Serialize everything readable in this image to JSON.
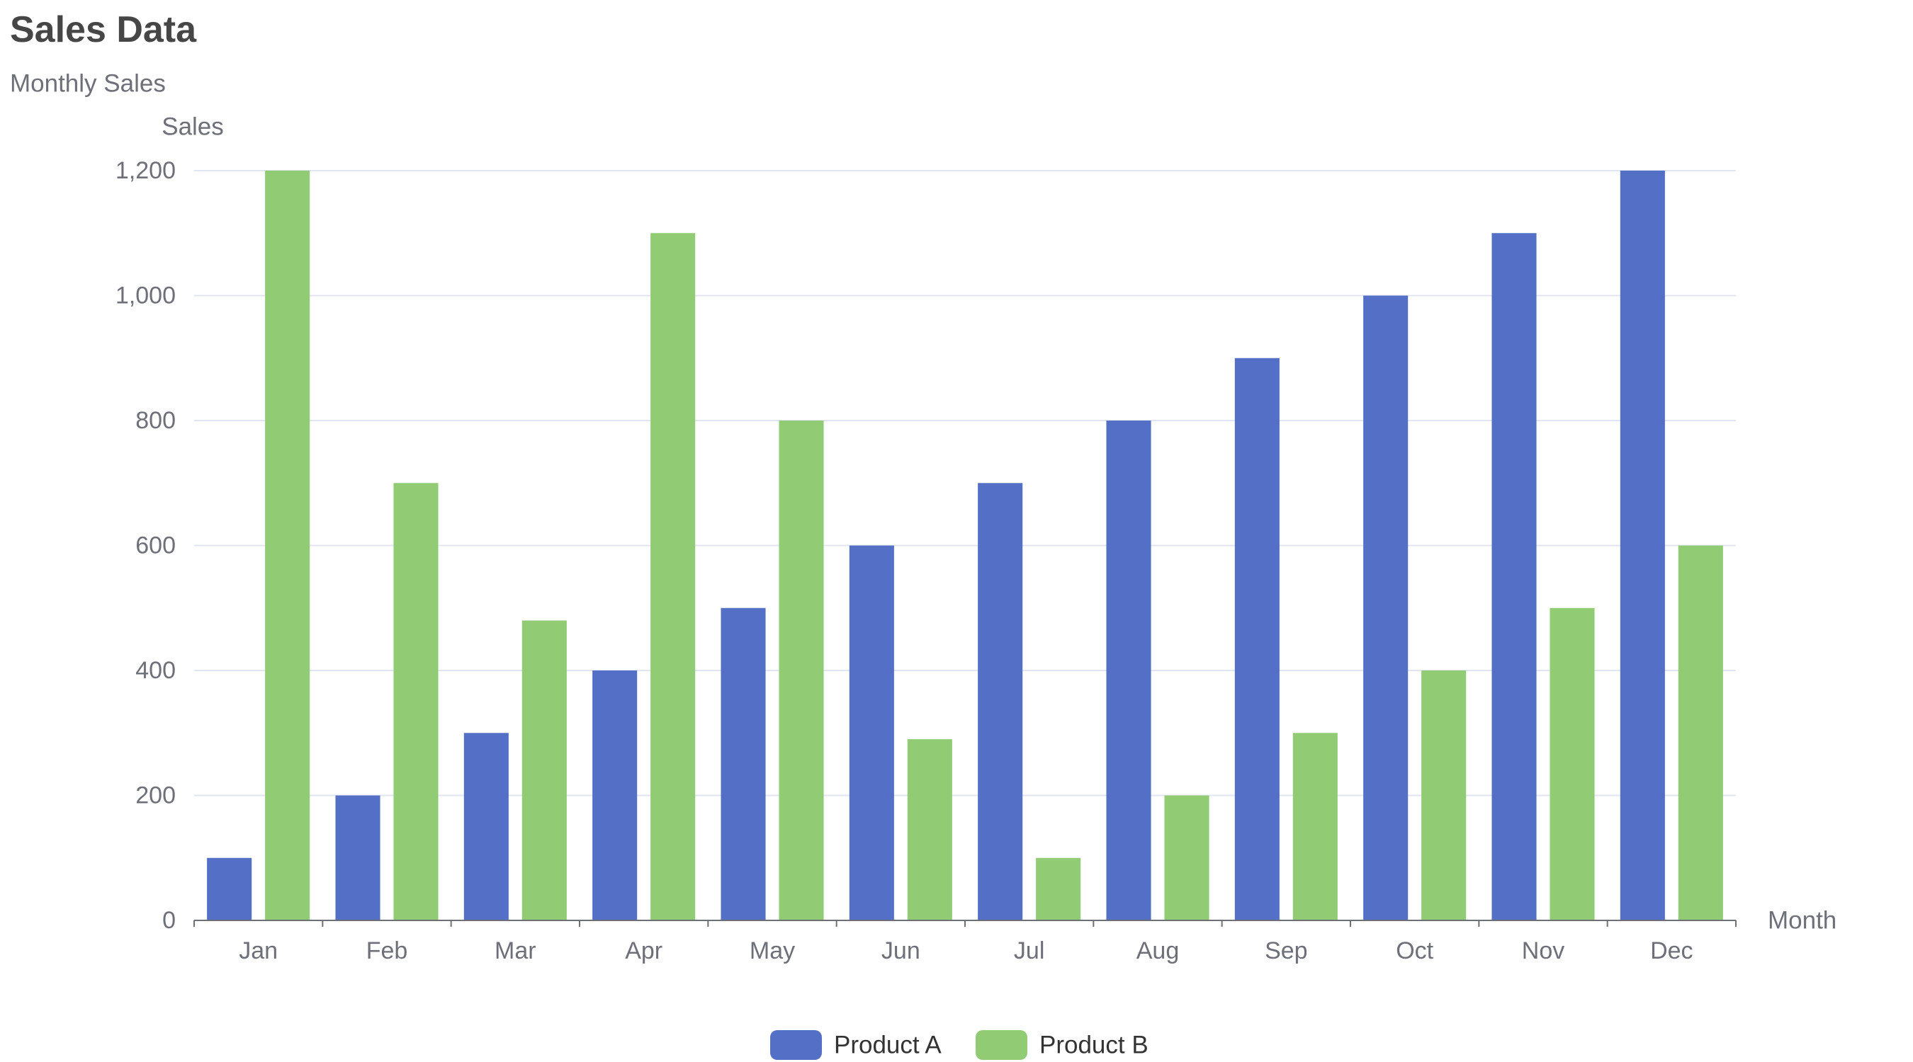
{
  "chart_data": {
    "type": "bar",
    "title": "Sales Data",
    "subtitle": "Monthly Sales",
    "xlabel": "Month",
    "ylabel": "Sales",
    "categories": [
      "Jan",
      "Feb",
      "Mar",
      "Apr",
      "May",
      "Jun",
      "Jul",
      "Aug",
      "Sep",
      "Oct",
      "Nov",
      "Dec"
    ],
    "series": [
      {
        "name": "Product A",
        "color": "#5470c6",
        "values": [
          100,
          200,
          300,
          400,
          500,
          600,
          700,
          800,
          900,
          1000,
          1100,
          1200
        ]
      },
      {
        "name": "Product B",
        "color": "#91cc75",
        "values": [
          1200,
          700,
          480,
          1100,
          800,
          290,
          100,
          200,
          300,
          400,
          500,
          600
        ]
      }
    ],
    "ylim": [
      0,
      1200
    ],
    "y_ticks": [
      0,
      200,
      400,
      600,
      800,
      1000,
      1200
    ],
    "y_tick_labels": [
      "0",
      "200",
      "400",
      "600",
      "800",
      "1,000",
      "1,200"
    ],
    "grid": true,
    "legend": "bottom-center",
    "grid_color": "#e0e6f1",
    "axis_color": "#6e7079"
  }
}
